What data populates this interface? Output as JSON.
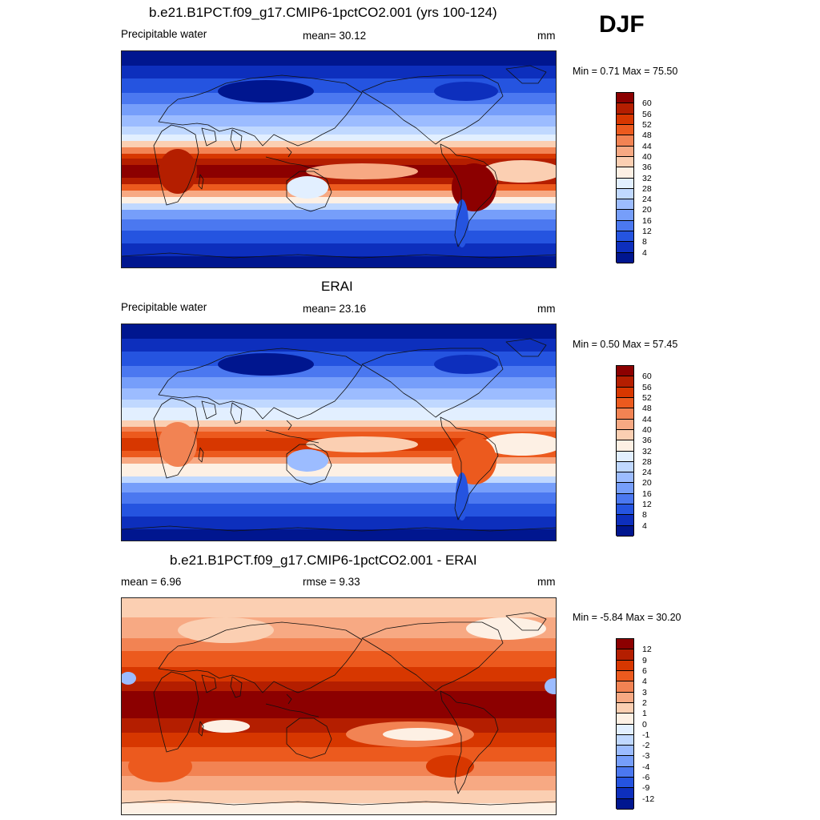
{
  "season": "DJF",
  "panels": [
    {
      "title": "b.e21.B1PCT.f09_g17.CMIP6-1pctCO2.001 (yrs 100-124)",
      "left_label": "Precipitable water",
      "center_label": "mean=  30.12",
      "units": "mm",
      "minmax": "Min =   0.71 Max =  75.50",
      "kind": "model"
    },
    {
      "title": "ERAI",
      "left_label": "Precipitable water",
      "center_label": "mean=  23.16",
      "units": "mm",
      "minmax": "Min =   0.50 Max =  57.45",
      "kind": "obs"
    },
    {
      "title": "b.e21.B1PCT.f09_g17.CMIP6-1pctCO2.001 - ERAI",
      "left_label": "mean =   6.96",
      "center_label": "rmse =   9.33",
      "units": "mm",
      "minmax": "Min =  -5.84 Max =  30.20",
      "kind": "diff"
    }
  ],
  "colorbars": {
    "field": {
      "labels": [
        "60",
        "56",
        "52",
        "48",
        "44",
        "40",
        "36",
        "32",
        "28",
        "24",
        "20",
        "16",
        "12",
        "8",
        "4"
      ],
      "colors": [
        "#8c0000",
        "#b41e00",
        "#d73700",
        "#ec5a1e",
        "#f28353",
        "#f7a983",
        "#fbcfb2",
        "#fdf0e4",
        "#e2efff",
        "#c0d8ff",
        "#9cbcff",
        "#769efa",
        "#4b78f0",
        "#2554e0",
        "#0d2fbd",
        "#00168f"
      ]
    },
    "diff": {
      "labels": [
        "12",
        "9",
        "6",
        "4",
        "3",
        "2",
        "1",
        "0",
        "-1",
        "-2",
        "-3",
        "-4",
        "-6",
        "-9",
        "-12"
      ],
      "colors": [
        "#8c0000",
        "#b41e00",
        "#d73700",
        "#ec5a1e",
        "#f28353",
        "#f7a983",
        "#fbcfb2",
        "#fdf0e4",
        "#e2efff",
        "#c0d8ff",
        "#9cbcff",
        "#769efa",
        "#4b78f0",
        "#2554e0",
        "#0d2fbd",
        "#00168f"
      ]
    }
  }
}
